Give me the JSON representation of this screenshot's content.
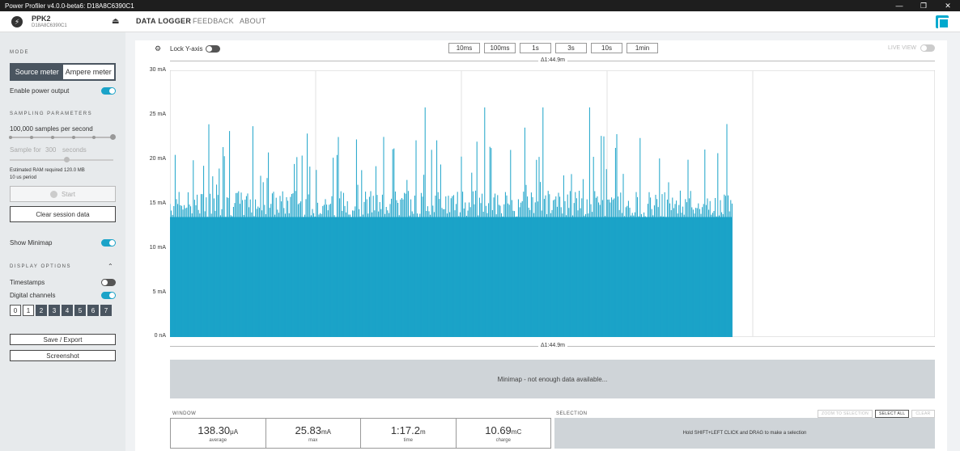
{
  "window": {
    "title": "Power Profiler v4.0.0-beta6: D18A8C6390C1"
  },
  "header": {
    "device_name": "PPK2",
    "device_serial": "D18A8C6390C1",
    "tabs": [
      "DATA LOGGER",
      "FEEDBACK",
      "ABOUT"
    ]
  },
  "sidebar": {
    "mode_label": "MODE",
    "source_meter": "Source meter",
    "ampere_meter": "Ampere meter",
    "enable_power_output": "Enable power output",
    "sampling_label": "SAMPLING PARAMETERS",
    "samples_per_second": "100,000 samples per second",
    "sample_for": "Sample for",
    "sample_for_value": "300",
    "seconds": "seconds",
    "ram_required": "Estimated RAM required 120.0 MB",
    "period": "10 us period",
    "start": "Start",
    "clear_session": "Clear session data",
    "show_minimap": "Show Minimap",
    "display_label": "DISPLAY OPTIONS",
    "timestamps": "Timestamps",
    "digital_channels": "Digital channels",
    "channels": [
      "0",
      "1",
      "2",
      "3",
      "4",
      "5",
      "6",
      "7"
    ],
    "save_export": "Save / Export",
    "screenshot": "Screenshot"
  },
  "main": {
    "lock_y_axis": "Lock Y-axis",
    "window_buttons": [
      "10ms",
      "100ms",
      "1s",
      "3s",
      "10s",
      "1min"
    ],
    "live_view": "LIVE VIEW",
    "delta": "Δ1:44.9m",
    "minimap_msg": "Minimap - not enough data available...",
    "window_label": "WINDOW",
    "selection_label": "SELECTION",
    "zoom_to_selection": "ZOOM TO SELECTION",
    "select_all": "SELECT ALL",
    "clear": "CLEAR",
    "selection_msg": "Hold SHIFT+LEFT CLICK and DRAG to make a selection",
    "stats": [
      {
        "value": "138.30",
        "unit": "μA",
        "label": "average"
      },
      {
        "value": "25.83",
        "unit": "mA",
        "label": "max"
      },
      {
        "value": "1:17.2",
        "unit": "m",
        "label": "time"
      },
      {
        "value": "10.69",
        "unit": "mC",
        "label": "charge"
      }
    ]
  },
  "chart_data": {
    "type": "bar",
    "y_ticks": [
      "30 mA",
      "25 mA",
      "20 mA",
      "15 mA",
      "10 mA",
      "5 mA",
      "0 nA"
    ],
    "ylim": [
      0,
      30
    ],
    "y_unit": "mA",
    "color": "#1ba3c8",
    "data_extent_fraction": 0.735,
    "baseline_mA": 13.5,
    "peak_mA": 25.83
  },
  "colors": {
    "accent": "#1ba3c8",
    "sidebar": "#e7eaec",
    "titlebar": "#1e1e1e"
  }
}
